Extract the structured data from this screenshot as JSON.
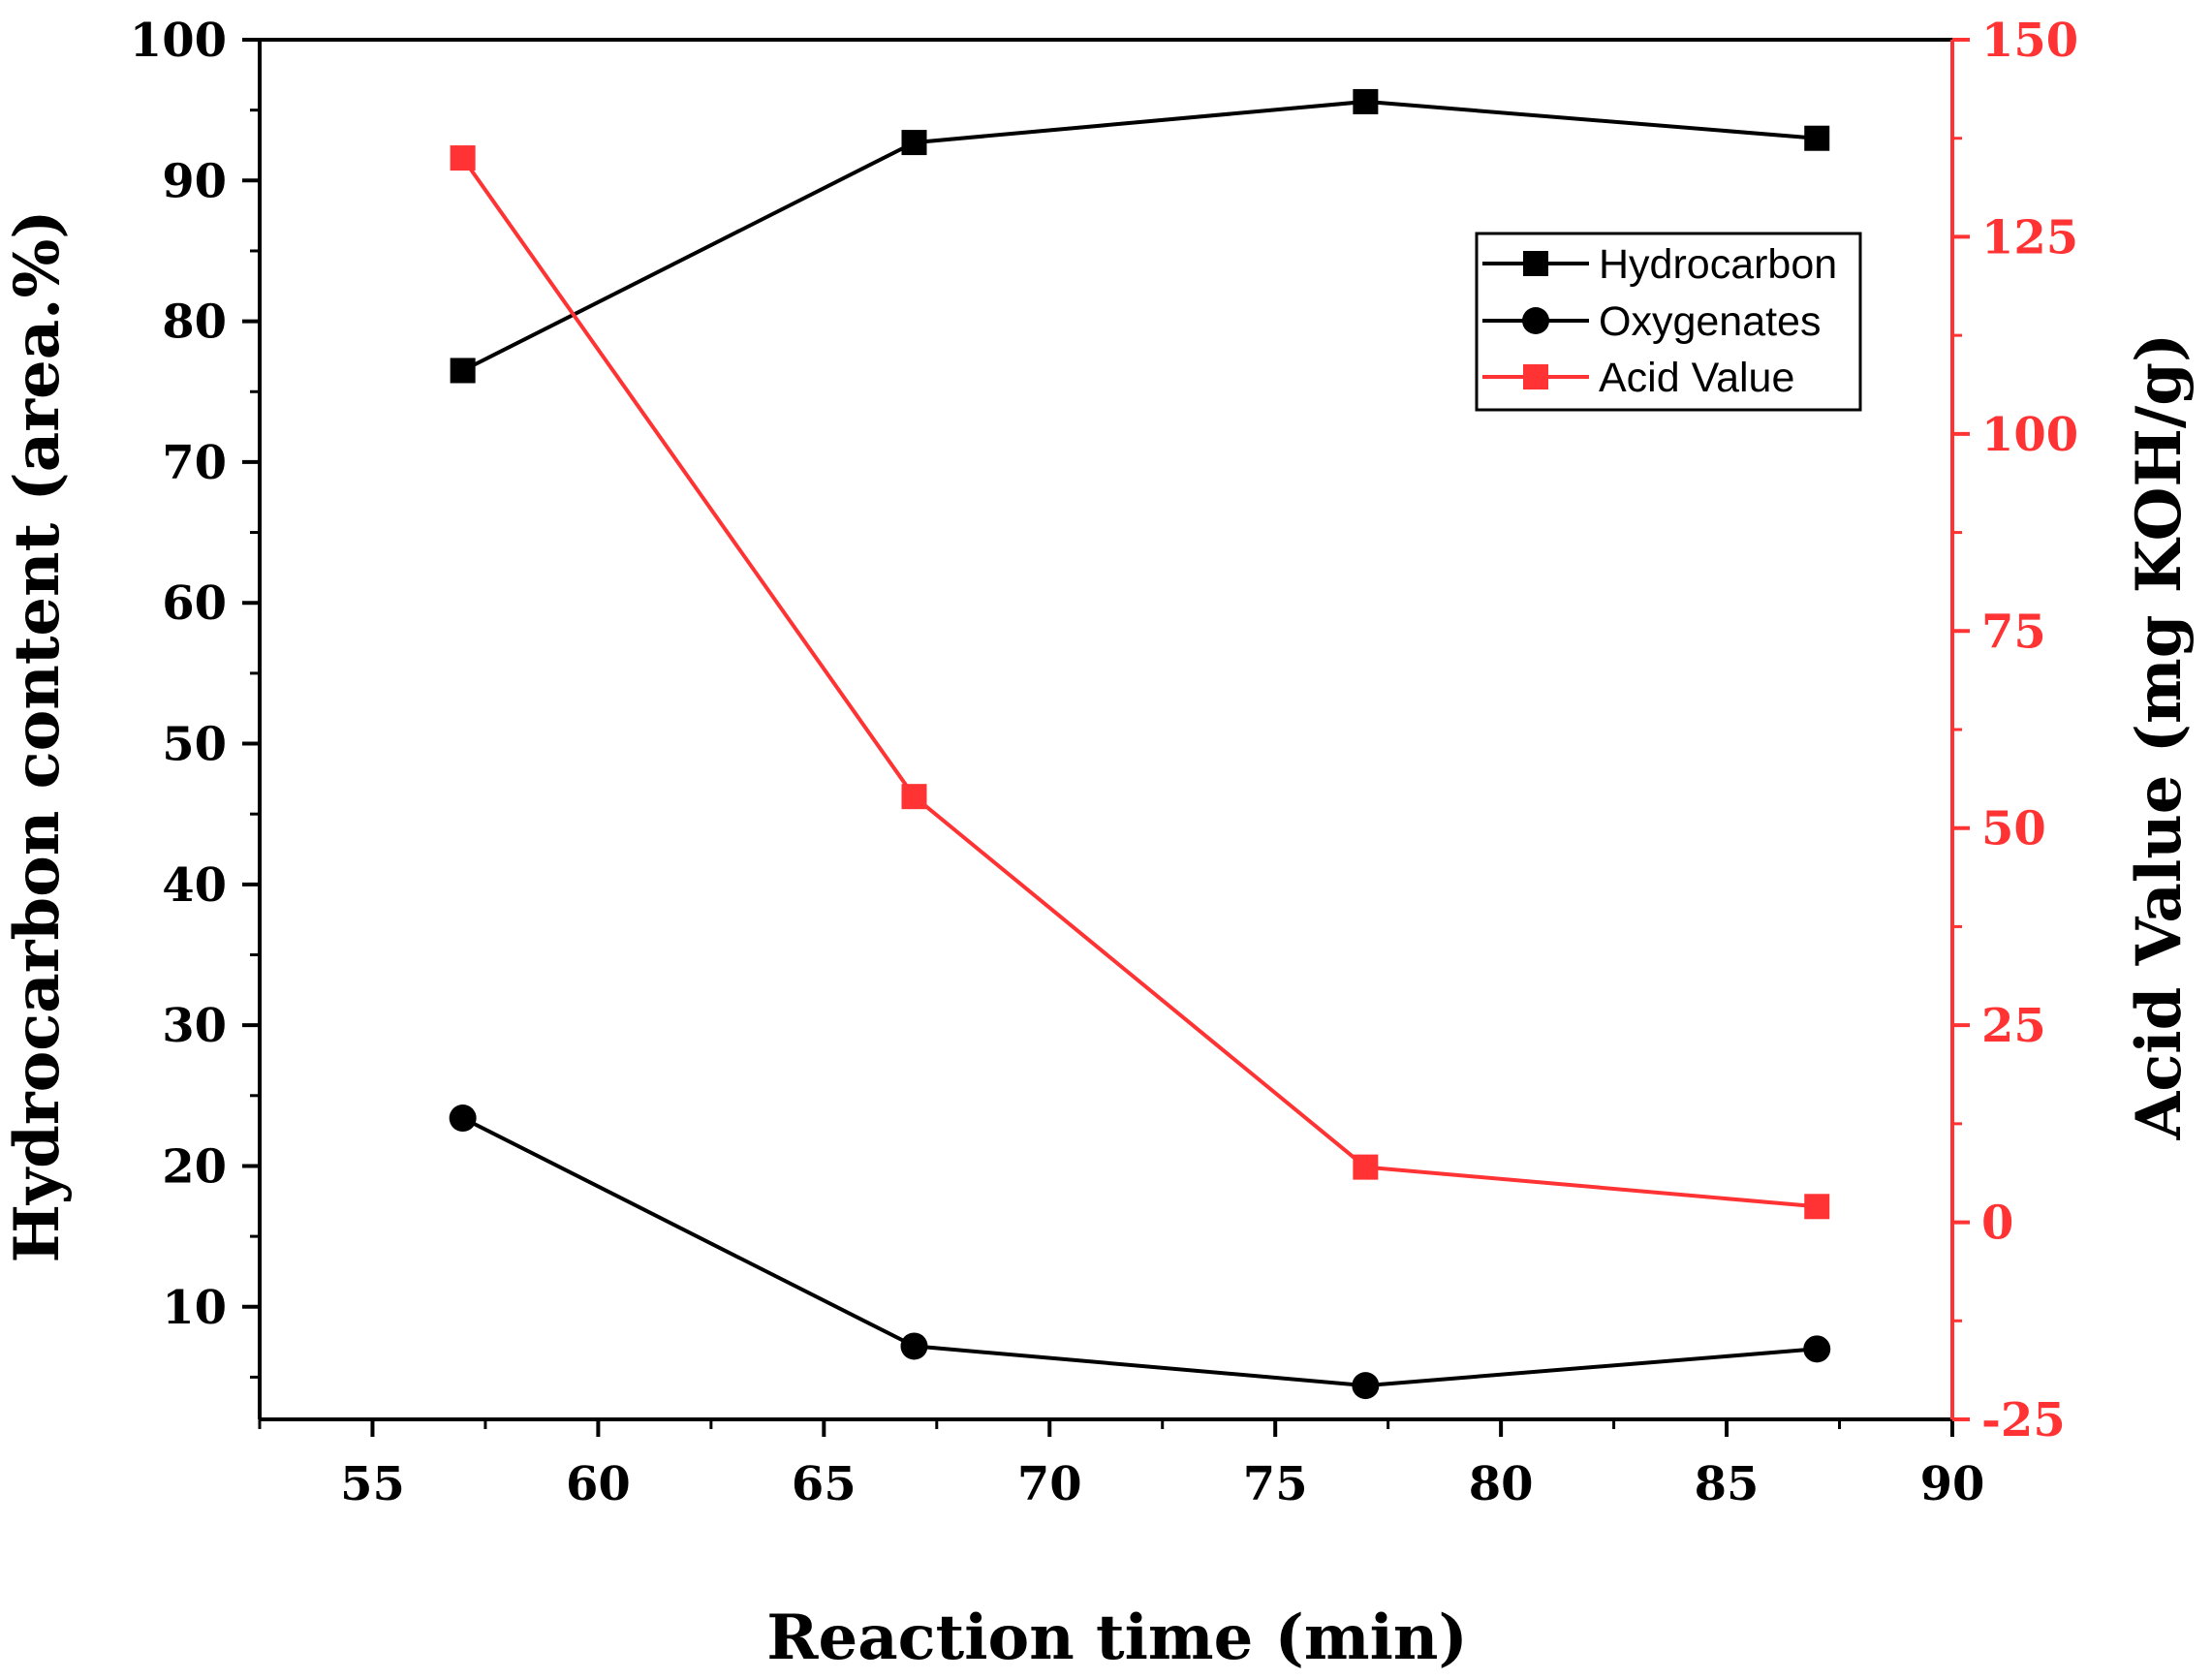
{
  "chart_data": {
    "type": "line",
    "xlabel": "Reaction time (min)",
    "ylabel": "Hydrocarbon content (area.%)",
    "y2label": "Acid Value (mg KOH/g)",
    "xlim": [
      52.5,
      90
    ],
    "ylim": [
      2,
      100
    ],
    "y2lim": [
      -25,
      150
    ],
    "x_ticks": [
      "55",
      "60",
      "65",
      "70",
      "75",
      "80",
      "85",
      "90"
    ],
    "y_ticks": [
      "10",
      "20",
      "30",
      "40",
      "50",
      "60",
      "70",
      "80",
      "90",
      "100"
    ],
    "y2_ticks": [
      "-25",
      "0",
      "25",
      "50",
      "75",
      "100",
      "125",
      "150"
    ],
    "x": [
      57,
      67,
      77,
      87
    ],
    "series": [
      {
        "name": "Hydrocarbon",
        "axis": "left",
        "marker": "square",
        "color": "#000000",
        "values": [
          76.5,
          92.7,
          95.6,
          93.0
        ]
      },
      {
        "name": "Oxygenates",
        "axis": "left",
        "marker": "circle",
        "color": "#000000",
        "values": [
          23.4,
          7.2,
          4.4,
          7.0
        ]
      },
      {
        "name": "Acid Value",
        "axis": "right",
        "marker": "square",
        "color": "#ff3333",
        "values": [
          135,
          54,
          7,
          2
        ]
      }
    ],
    "legend": {
      "position": "top-right",
      "items": [
        "Hydrocarbon",
        "Oxygenates",
        "Acid Value"
      ]
    },
    "grid": false
  }
}
